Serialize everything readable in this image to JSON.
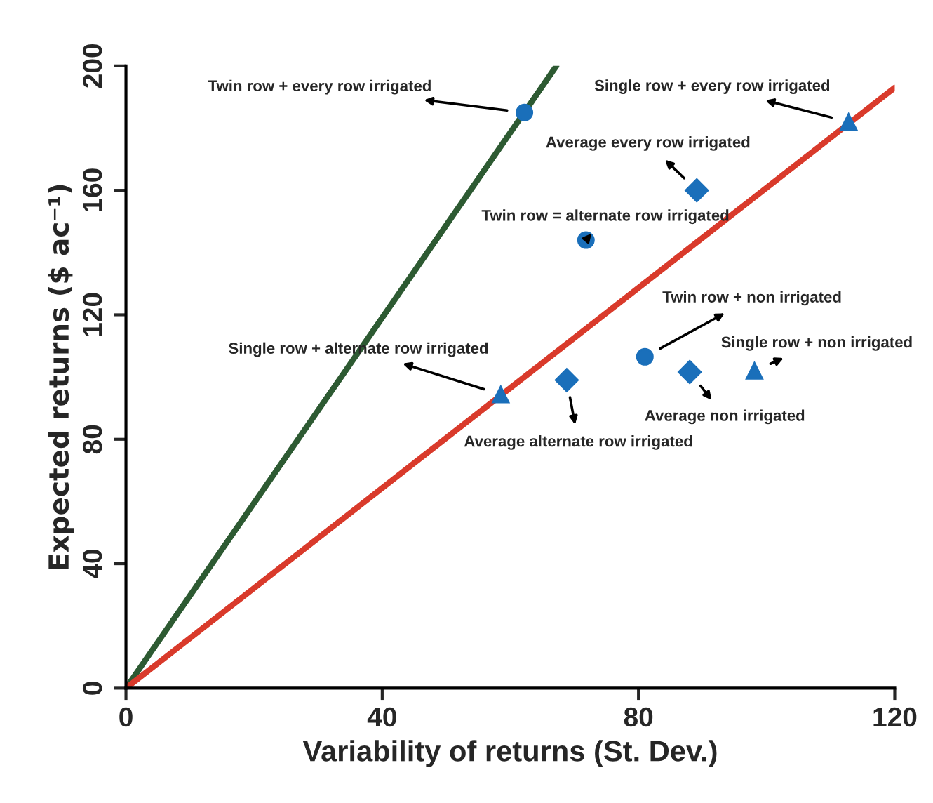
{
  "chart_data": {
    "type": "scatter",
    "xlabel": "Variability of returns (St. Dev.)",
    "ylabel": "Expected returns ($ ac⁻¹)",
    "xlim": [
      0,
      120
    ],
    "ylim": [
      0,
      200
    ],
    "xticks": [
      0,
      40,
      80,
      120
    ],
    "yticks": [
      0,
      40,
      80,
      120,
      160,
      200
    ],
    "series": [
      {
        "type": "line",
        "color": "#2d5a32",
        "x": [
          0,
          67.2
        ],
        "values": [
          0,
          200
        ],
        "marker": "none"
      },
      {
        "type": "line",
        "color": "#d93a2b",
        "x": [
          0,
          120
        ],
        "values": [
          0,
          193
        ],
        "marker": "none"
      },
      {
        "name": "Twin row + every row irrigated",
        "color": "#1a6fba",
        "marker": "circle",
        "x": [
          62.2
        ],
        "values": [
          185
        ]
      },
      {
        "name": "Single row + every row irrigated",
        "color": "#1a6fba",
        "marker": "triangle",
        "x": [
          112.8
        ],
        "values": [
          182
        ]
      },
      {
        "name": "Average every row irrigated",
        "color": "#1a6fba",
        "marker": "diamond",
        "x": [
          89.1
        ],
        "values": [
          160
        ]
      },
      {
        "name": "Twin row = alternate row irrigated",
        "color": "#1a6fba",
        "marker": "circle",
        "x": [
          71.8
        ],
        "values": [
          144
        ]
      },
      {
        "name": "Twin row + non irrigated",
        "color": "#1a6fba",
        "marker": "circle",
        "x": [
          81.0
        ],
        "values": [
          106.5
        ]
      },
      {
        "name": "Single row + non irrigated",
        "color": "#1a6fba",
        "marker": "triangle",
        "x": [
          98.1
        ],
        "values": [
          102
        ]
      },
      {
        "name": "Average non irrigated",
        "color": "#1a6fba",
        "marker": "diamond",
        "x": [
          88.0
        ],
        "values": [
          101.6
        ]
      },
      {
        "name": "Single row + alternate row irrigated",
        "color": "#1a6fba",
        "marker": "triangle",
        "x": [
          58.5
        ],
        "values": [
          94.4
        ]
      },
      {
        "name": "Average alternate row irrigated",
        "color": "#1a6fba",
        "marker": "diamond",
        "x": [
          68.8
        ],
        "values": [
          99
        ]
      }
    ]
  }
}
